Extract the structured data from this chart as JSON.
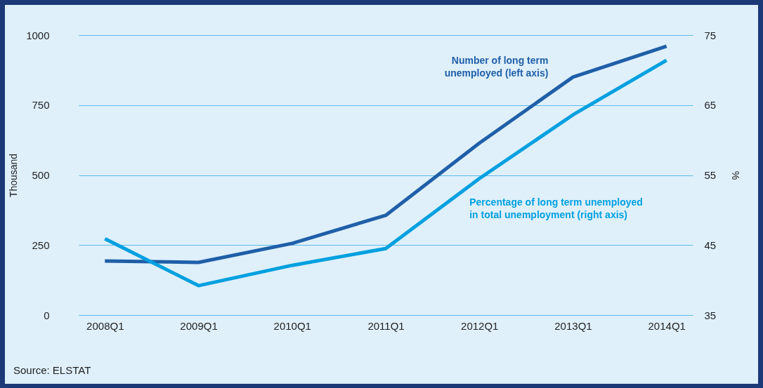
{
  "chart_data": {
    "type": "line",
    "categories": [
      "2008Q1",
      "2009Q1",
      "2010Q1",
      "2011Q1",
      "2012Q1",
      "2013Q1",
      "2014Q1"
    ],
    "ylabel": "Thousand",
    "y2label": "%",
    "ylim": [
      0,
      1000
    ],
    "yticks": [
      0,
      250,
      500,
      750,
      1000
    ],
    "y2lim": [
      35,
      75
    ],
    "y2ticks": [
      35,
      45,
      55,
      65,
      75
    ],
    "series": [
      {
        "name": "Number of long term unemployed (left axis)",
        "color": "#1f5fa8",
        "values": [
          193,
          188,
          256,
          356,
          614,
          850,
          960
        ]
      },
      {
        "name": "Percentage of long term unemployed in total unemployment (right axis)",
        "color": "#00a0e0",
        "axis": "y2",
        "values": [
          45.9,
          39.2,
          42.1,
          44.5,
          54.5,
          63.6,
          71.4
        ]
      }
    ],
    "grid": "y",
    "legend": false,
    "line_style": "solid",
    "marker": "none",
    "annotations": [
      "Source: ELSTAT"
    ]
  }
}
